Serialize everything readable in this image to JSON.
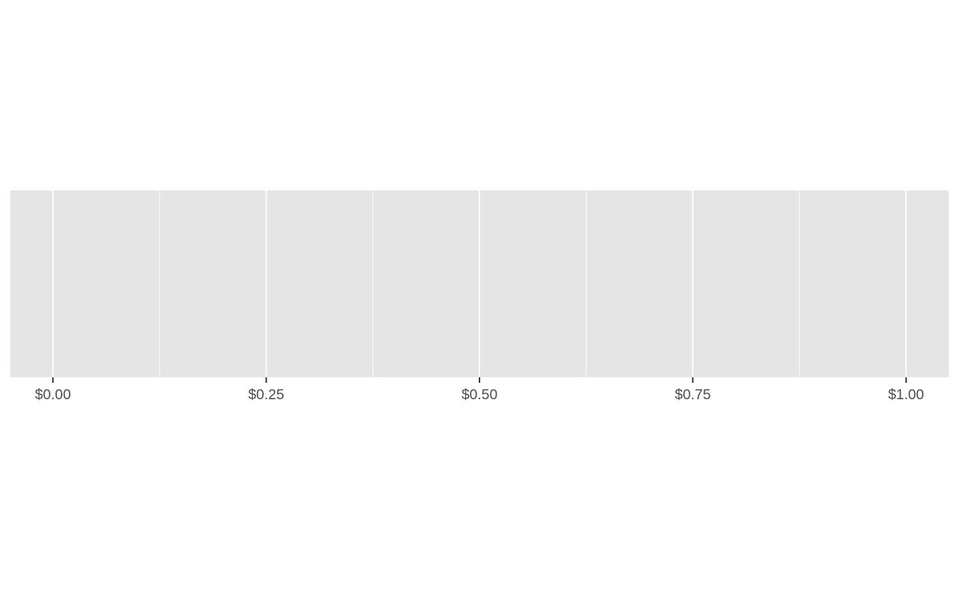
{
  "chart_data": {
    "type": "scatter",
    "title": "",
    "xlabel": "",
    "ylabel": "",
    "xlim": [
      -0.05,
      1.05
    ],
    "x_ticks": [
      0,
      0.25,
      0.5,
      0.75,
      1
    ],
    "x_tick_labels": [
      "$0.00",
      "$0.25",
      "$0.50",
      "$0.75",
      "$1.00"
    ],
    "x_minor_gridlines": [
      0.125,
      0.375,
      0.625,
      0.875
    ],
    "y_ticks": [],
    "grid": true,
    "legend": "none",
    "series": [
      {
        "x": [],
        "y": []
      }
    ],
    "colors": {
      "panel_background": "#e5e5e5",
      "gridlines": "#ffffff",
      "tick_marks": "#333333",
      "tick_labels": "#4d4d4d"
    }
  }
}
